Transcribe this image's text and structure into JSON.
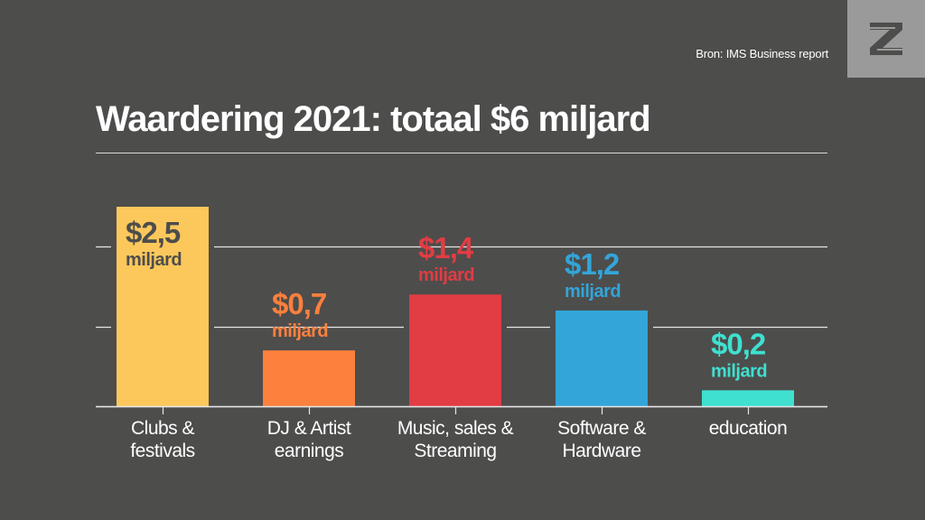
{
  "source": "Bron: IMS Business report",
  "logo_icon": "z-logo-icon",
  "title": "Waardering 2021: totaal $6 miljard",
  "chart_data": {
    "type": "bar",
    "title": "Waardering 2021: totaal $6 miljard",
    "unit": "miljard",
    "categories": [
      [
        "Clubs &",
        "festivals"
      ],
      [
        "DJ & Artist",
        "earnings"
      ],
      [
        "Music, sales &",
        "Streaming"
      ],
      [
        "Software &",
        "Hardware"
      ],
      [
        "education"
      ]
    ],
    "values": [
      2.5,
      0.7,
      1.4,
      1.2,
      0.2
    ],
    "value_labels": [
      "$2,5",
      "$0,7",
      "$1,4",
      "$1,2",
      "$0,2"
    ],
    "colors": [
      "#fcc85c",
      "#fd803d",
      "#e23c44",
      "#33a5d8",
      "#3fe0cf"
    ],
    "label_colors": [
      "#4d4d4c",
      "#fd803d",
      "#e23c44",
      "#33a5d8",
      "#3fe0cf"
    ],
    "ylim": [
      0,
      2.5
    ],
    "gridlines": [
      0,
      1,
      2
    ],
    "grid": true,
    "xlabel": "",
    "ylabel": ""
  }
}
